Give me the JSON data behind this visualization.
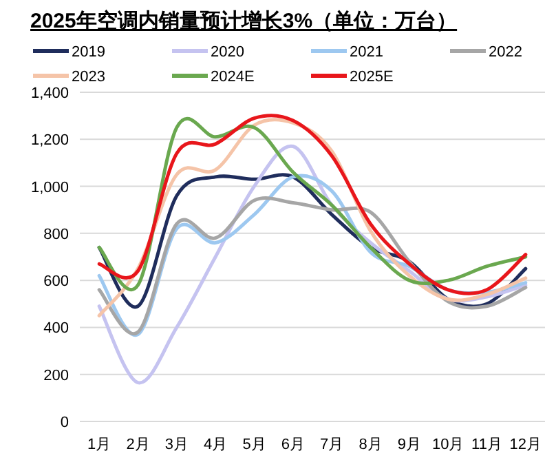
{
  "chart_data": {
    "type": "line",
    "title": "2025年空调内销量预计增长3%（单位：万台）",
    "categories": [
      "1月",
      "2月",
      "3月",
      "4月",
      "5月",
      "6月",
      "7月",
      "8月",
      "9月",
      "10月",
      "11月",
      "12月"
    ],
    "series": [
      {
        "name": "2019",
        "color": "#1f2d5c",
        "values": [
          740,
          490,
          960,
          1040,
          1030,
          1040,
          880,
          740,
          680,
          520,
          500,
          650
        ]
      },
      {
        "name": "2020",
        "color": "#c5c3f0",
        "values": [
          490,
          165,
          400,
          700,
          1000,
          1170,
          920,
          760,
          640,
          520,
          530,
          580
        ]
      },
      {
        "name": "2021",
        "color": "#9dc8f0",
        "values": [
          620,
          370,
          820,
          760,
          880,
          1040,
          980,
          720,
          660,
          560,
          550,
          590
        ]
      },
      {
        "name": "2022",
        "color": "#a6a6a6",
        "values": [
          560,
          380,
          840,
          780,
          940,
          930,
          900,
          890,
          680,
          510,
          490,
          570
        ]
      },
      {
        "name": "2023",
        "color": "#f5c4a8",
        "values": [
          450,
          650,
          1050,
          1070,
          1260,
          1270,
          1150,
          810,
          620,
          520,
          540,
          610
        ]
      },
      {
        "name": "2024E",
        "color": "#6aa84f",
        "values": [
          740,
          580,
          1250,
          1210,
          1250,
          1060,
          920,
          740,
          600,
          600,
          660,
          700
        ]
      },
      {
        "name": "2025E",
        "color": "#e8161b",
        "values": [
          670,
          640,
          1140,
          1180,
          1290,
          1280,
          1130,
          840,
          670,
          560,
          560,
          710
        ]
      }
    ],
    "ylim": [
      0,
      1400
    ],
    "yticks": [
      0,
      200,
      400,
      600,
      800,
      {
        "value": 1000,
        "label": "1,000"
      },
      {
        "value": 1200,
        "label": "1,200"
      },
      {
        "value": 1400,
        "label": "1,400"
      }
    ],
    "grid": "y",
    "legend": "top",
    "marker": "none",
    "line_style": "solid"
  }
}
